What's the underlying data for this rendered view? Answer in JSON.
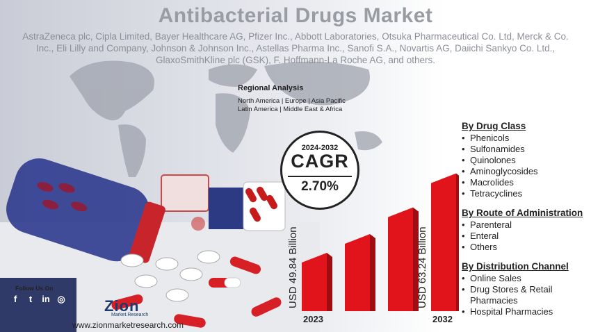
{
  "header": {
    "title": "Antibacterial Drugs Market",
    "companies": "AstraZeneca plc, Cipla Limited, Bayer Healthcare AG, Pfizer Inc., Abbott Laboratories, Otsuka Pharmaceutical Co. Ltd, Merck & Co. Inc., Eli Lilly and Company, Johnson & Johnson Inc., Astellas Pharma Inc., Sanofi S.A., Novartis AG, Daiichi Sankyo Co. Ltd., GlaxoSmithKline plc (GSK), F. Hoffmann-La Roche AG, and others."
  },
  "regional": {
    "heading": "Regional Analysis",
    "line1": "North America |    Europe | Asia Pacific",
    "line2": "Latin America  | Middle East & Africa"
  },
  "cagr": {
    "period": "2024-2032",
    "label": "CAGR",
    "rate": "2.70%"
  },
  "chart_data": {
    "type": "bar",
    "categories": [
      "2023",
      "",
      "",
      "2032"
    ],
    "values": [
      49.84,
      53.0,
      57.5,
      63.24
    ],
    "data_labels": [
      "USD 49.84 Billion",
      "",
      "",
      "USD 63.24 Billion"
    ],
    "bar_color": "#e1141c",
    "ylim": [
      40,
      66
    ]
  },
  "segments": {
    "drug_class": {
      "heading": "By Drug Class",
      "items": [
        "Phenicols",
        "Sulfonamides",
        "Quinolones",
        "Aminoglycosides",
        "Macrolides",
        "Tetracyclines"
      ]
    },
    "route": {
      "heading": "By Route of Administration",
      "items": [
        "Parenteral",
        "Enteral",
        "Others"
      ]
    },
    "channel": {
      "heading": "By Distribution Channel",
      "items": [
        "Online Sales",
        "Drug Stores & Retail Pharmacies",
        "Hospital Pharmacies"
      ]
    }
  },
  "footer": {
    "follow": "Follow Us On",
    "social": [
      {
        "icon": "facebook-icon",
        "glyph": "f"
      },
      {
        "icon": "twitter-icon",
        "glyph": "t"
      },
      {
        "icon": "linkedin-icon",
        "glyph": "in"
      },
      {
        "icon": "instagram-icon",
        "glyph": "◎"
      }
    ],
    "logo_main": "Zion",
    "logo_sub": "Market.Research",
    "website": "www.zionmarketresearch.com"
  }
}
